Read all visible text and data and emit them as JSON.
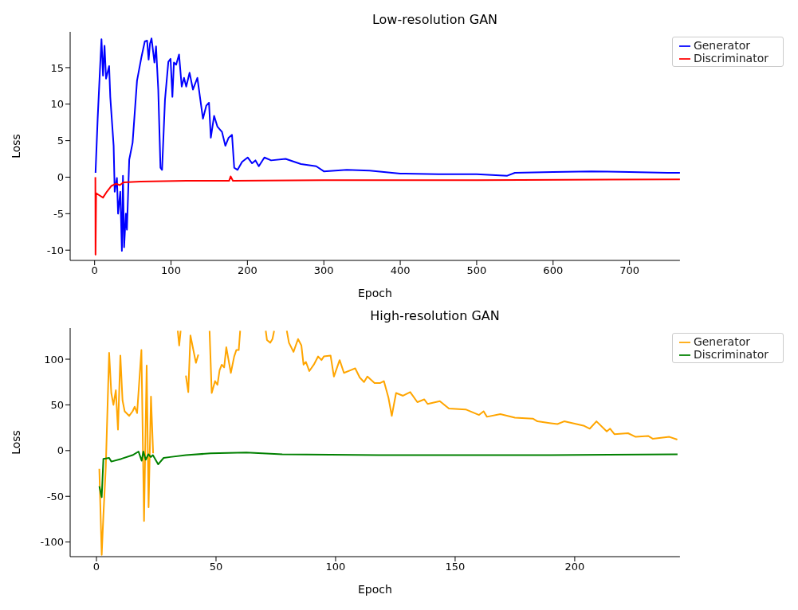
{
  "chart_data": [
    {
      "type": "line",
      "title": "Low-resolution GAN",
      "xlabel": "Epoch",
      "ylabel": "Loss",
      "xlim": [
        -32,
        766
      ],
      "ylim": [
        -11.4,
        19.9
      ],
      "xticks": [
        0,
        100,
        200,
        300,
        400,
        500,
        600,
        700
      ],
      "yticks": [
        -10,
        -5,
        0,
        5,
        10,
        15
      ],
      "legend": "top right",
      "grid": false,
      "series": [
        {
          "name": "Generator",
          "color": "#0000ff",
          "x": [
            1.2,
            4,
            7,
            9,
            11,
            13,
            15,
            19,
            20.5,
            24.9,
            26.3,
            29.2,
            30.7,
            33.6,
            35.7,
            37.1,
            38.6,
            40.9,
            42.3,
            45.3,
            49.7,
            55.5,
            61.4,
            65.7,
            68.7,
            70.7,
            72.5,
            74.5,
            78.3,
            80.4,
            83.3,
            86.2,
            88.3,
            92.1,
            96.5,
            99.4,
            101.8,
            103.8,
            106.7,
            110.5,
            114,
            117,
            119.9,
            124.3,
            128.7,
            134.5,
            138.9,
            141.8,
            146.2,
            149.7,
            152.1,
            156.4,
            160.8,
            166.7,
            171.1,
            175.4,
            179.8,
            182.7,
            187.1,
            193,
            200.3,
            206.1,
            210.5,
            214.9,
            222.2,
            231,
            250,
            270,
            290,
            300,
            330,
            360,
            400,
            450,
            500,
            540,
            550,
            600,
            650,
            700,
            750,
            766
          ],
          "values": [
            0.6,
            8,
            14.7,
            18.9,
            13.9,
            18,
            13.5,
            15.2,
            11,
            4.3,
            -2,
            -0.1,
            -5,
            -2,
            -10.1,
            0.2,
            -9.6,
            -5,
            -7.2,
            2.4,
            4.7,
            13.2,
            16.5,
            18.6,
            18.7,
            16.1,
            18.3,
            19,
            15.7,
            17.9,
            12,
            1.3,
            1,
            10.6,
            15.8,
            16.2,
            11,
            15.7,
            15.4,
            16.8,
            12.4,
            13.6,
            12.4,
            14.3,
            12,
            13.6,
            10.2,
            8,
            9.8,
            10.2,
            5.4,
            8.4,
            6.9,
            6.2,
            4.3,
            5.4,
            5.8,
            1.3,
            1,
            2.1,
            2.7,
            1.9,
            2.3,
            1.5,
            2.7,
            2.3,
            2.5,
            1.8,
            1.5,
            0.8,
            1,
            0.9,
            0.5,
            0.4,
            0.4,
            0.2,
            0.6,
            0.7,
            0.8,
            0.7,
            0.6,
            0.6
          ]
        },
        {
          "name": "Discriminator",
          "color": "#ff0000",
          "x": [
            1,
            1.2,
            2,
            5,
            11,
            16,
            22,
            28,
            33,
            38,
            60,
            120,
            176,
            178,
            181,
            300,
            500,
            766
          ],
          "values": [
            0,
            -10.6,
            -2.2,
            -2.4,
            -2.8,
            -2,
            -1.2,
            -0.9,
            -1.1,
            -0.7,
            -0.6,
            -0.5,
            -0.5,
            0.1,
            -0.5,
            -0.4,
            -0.4,
            -0.3
          ]
        }
      ]
    },
    {
      "type": "line",
      "title": "High-resolution GAN",
      "xlabel": "Epoch",
      "ylabel": "Loss",
      "xlim": [
        -11,
        244
      ],
      "ylim": [
        -116,
        134
      ],
      "xticks": [
        0,
        50,
        100,
        150,
        200
      ],
      "yticks": [
        -100,
        -50,
        0,
        50,
        100
      ],
      "legend": "top right",
      "grid": false,
      "series": [
        {
          "name": "Generator",
          "color": "#ffa500",
          "x": [
            1.2,
            2.2,
            2.9,
            3.9,
            5.3,
            6.2,
            7.1,
            8.1,
            9,
            10,
            10.9,
            11.8,
            13.7,
            15.1,
            16,
            17,
            18.8,
            19.9,
            21,
            21.8,
            22.8,
            23.7,
            24.5,
            34,
            34.6,
            35.2,
            36,
            37.4,
            38.4,
            39.3,
            41.6,
            42.6,
            44,
            47.3,
            48.2,
            49.6,
            50.6,
            51.5,
            52.4,
            53.4,
            54.3,
            56.2,
            57.6,
            58.5,
            59.5,
            60.1,
            61,
            70.8,
            71.3,
            72.7,
            73.6,
            74.3,
            78.5,
            79.6,
            80.5,
            82.4,
            84.3,
            85.7,
            86.6,
            87.6,
            89,
            90.9,
            92.7,
            94.1,
            95.1,
            97.9,
            99.3,
            101.7,
            103.5,
            106.3,
            108.2,
            110.1,
            111.9,
            113.3,
            116.3,
            118.7,
            120.2,
            122.1,
            123.5,
            125.3,
            128.2,
            131.2,
            134.2,
            137.1,
            138.5,
            143.6,
            147.4,
            154.4,
            160,
            161.9,
            163.3,
            168.9,
            175,
            182.5,
            184.4,
            190,
            192.8,
            195.6,
            204,
            206.3,
            209.1,
            213.4,
            214.8,
            216.6,
            222.3,
            225.5,
            230.7,
            232.6,
            239.6,
            242.9
          ],
          "values": [
            -20,
            -114,
            -71,
            -18,
            107,
            63,
            50,
            66,
            23,
            104,
            55,
            43,
            38,
            43,
            48,
            41,
            110,
            -77,
            93,
            -62,
            59,
            -3,
            null,
            131,
            115,
            131,
            null,
            82,
            64,
            126,
            96,
            105,
            null,
            131,
            63,
            76,
            72,
            88,
            94,
            91,
            113,
            85,
            103,
            110,
            110,
            131,
            null,
            131,
            121,
            118,
            122,
            131,
            null,
            131,
            118,
            108,
            122,
            115,
            94,
            97,
            87,
            94,
            103,
            99,
            103,
            104,
            81,
            99,
            85,
            88,
            90,
            80,
            75,
            81,
            74,
            74,
            76,
            58,
            38,
            63,
            60,
            64,
            53,
            56,
            51,
            54,
            46,
            45,
            39,
            43,
            37,
            40,
            36,
            35,
            32,
            30,
            29,
            32,
            27,
            24,
            32,
            21,
            24,
            18,
            19,
            15,
            16,
            13,
            15,
            12
          ]
        },
        {
          "name": "Discriminator",
          "color": "#008000",
          "x": [
            1.2,
            2.2,
            2.9,
            5.3,
            6.2,
            10.4,
            15.1,
            17.6,
            18.9,
            19.6,
            20.6,
            21.7,
            22.7,
            23.6,
            25.8,
            28.1,
            30.9,
            37.4,
            47.7,
            62.7,
            77.7,
            118,
            190,
            243
          ],
          "values": [
            -39,
            -51,
            -9,
            -8,
            -12,
            -9,
            -5,
            -1,
            -11,
            -1,
            -10,
            -4,
            -7,
            -5,
            -15,
            -8,
            -7,
            -5,
            -3,
            -2,
            -4,
            -5,
            -5,
            -4
          ]
        }
      ]
    }
  ]
}
